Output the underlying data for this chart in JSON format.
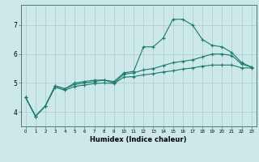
{
  "xlabel": "Humidex (Indice chaleur)",
  "bg_color": "#cce8e8",
  "grid_color": "#aacccc",
  "line_color": "#1a7a6e",
  "xlim": [
    -0.5,
    23.5
  ],
  "ylim": [
    3.5,
    7.7
  ],
  "yticks": [
    4,
    5,
    6,
    7
  ],
  "xticks": [
    0,
    1,
    2,
    3,
    4,
    5,
    6,
    7,
    8,
    9,
    10,
    11,
    12,
    13,
    14,
    15,
    16,
    17,
    18,
    19,
    20,
    21,
    22,
    23
  ],
  "line1_x": [
    0,
    1,
    2,
    3,
    4,
    5,
    6,
    7,
    8,
    9,
    10,
    11,
    12,
    13,
    14,
    15,
    16,
    17,
    18,
    19,
    20,
    21,
    22,
    23
  ],
  "line1_y": [
    4.5,
    3.85,
    4.2,
    4.9,
    4.8,
    5.0,
    5.05,
    5.1,
    5.1,
    5.05,
    5.35,
    5.4,
    6.25,
    6.25,
    6.55,
    7.2,
    7.2,
    7.0,
    6.5,
    6.3,
    6.25,
    6.05,
    5.7,
    5.55
  ],
  "line2_x": [
    0,
    1,
    2,
    3,
    4,
    5,
    6,
    7,
    8,
    9,
    10,
    11,
    12,
    13,
    14,
    15,
    16,
    17,
    18,
    19,
    20,
    21,
    22,
    23
  ],
  "line2_y": [
    4.5,
    3.85,
    4.2,
    4.9,
    4.8,
    4.95,
    5.0,
    5.05,
    5.1,
    5.0,
    5.3,
    5.35,
    5.45,
    5.5,
    5.6,
    5.7,
    5.75,
    5.8,
    5.9,
    6.0,
    6.0,
    5.95,
    5.65,
    5.55
  ],
  "line3_x": [
    0,
    1,
    2,
    3,
    4,
    5,
    6,
    7,
    8,
    9,
    10,
    11,
    12,
    13,
    14,
    15,
    16,
    17,
    18,
    19,
    20,
    21,
    22,
    23
  ],
  "line3_y": [
    4.5,
    3.85,
    4.2,
    4.85,
    4.75,
    4.88,
    4.93,
    4.98,
    5.0,
    4.98,
    5.2,
    5.22,
    5.28,
    5.32,
    5.38,
    5.42,
    5.48,
    5.52,
    5.58,
    5.62,
    5.62,
    5.62,
    5.52,
    5.52
  ]
}
